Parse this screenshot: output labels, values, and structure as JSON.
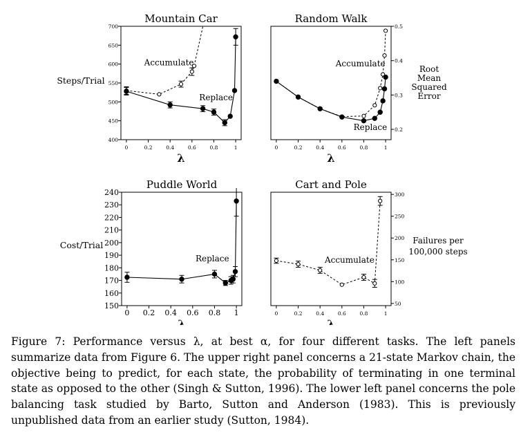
{
  "caption": "Figure 7: Performance versus λ, at best α, for four different tasks. The left panels summarize data from Figure 6. The upper right panel concerns a 21-state Markov chain, the objective being to predict, for each state, the probability of terminating in one terminal state as opposed to the other (Singh & Sutton, 1996). The lower left panel concerns the pole balancing task studied by Barto, Sutton and Anderson (1983). This is previously unpublished data from an earlier study (Sutton, 1984).",
  "chart_data": [
    {
      "id": "mountain-car",
      "type": "line",
      "title": "Mountain Car",
      "xlabel": "λ",
      "ylabel": "Steps/Trial",
      "xlim": [
        -0.05,
        1.05
      ],
      "ylim": [
        400,
        700
      ],
      "xticks": [
        "0",
        "0.2",
        "0.4",
        "0.6",
        "0.8",
        "1"
      ],
      "xtick_values": [
        0,
        0.2,
        0.4,
        0.6,
        0.8,
        1
      ],
      "yticks": [
        "400",
        "450",
        "500",
        "550",
        "600",
        "650",
        "700"
      ],
      "ytick_values": [
        400,
        450,
        500,
        550,
        600,
        650,
        700
      ],
      "series": [
        {
          "name": "Accumulate",
          "style": "dashed-open",
          "points": [
            [
              0,
              530,
              10
            ],
            [
              0.3,
              520,
              0
            ],
            [
              0.5,
              547,
              8
            ],
            [
              0.6,
              580,
              10
            ],
            [
              0.62,
              595,
              0
            ],
            [
              0.7,
              700,
              0
            ]
          ]
        },
        {
          "name": "Replace",
          "style": "solid-filled",
          "points": [
            [
              0,
              528,
              10
            ],
            [
              0.4,
              492,
              8
            ],
            [
              0.7,
              482,
              8
            ],
            [
              0.8,
              473,
              8
            ],
            [
              0.9,
              445,
              8
            ],
            [
              0.95,
              462,
              0
            ],
            [
              0.99,
              530,
              0
            ],
            [
              1,
              672,
              22
            ]
          ]
        }
      ],
      "annotations": [
        {
          "text": "Accumulate",
          "x": 0.39,
          "y": 597
        },
        {
          "text": "Replace",
          "x": 0.82,
          "y": 504
        }
      ]
    },
    {
      "id": "random-walk",
      "type": "line",
      "title": "Random Walk",
      "xlabel": "λ",
      "ylabel": "Root Mean Squared Error",
      "ylabel_lines": [
        "Root",
        "Mean",
        "Squared",
        "Error"
      ],
      "y_axis_side": "right",
      "xlim": [
        -0.05,
        1.05
      ],
      "ylim": [
        0.17,
        0.5
      ],
      "xticks": [
        "0",
        "0.2",
        "0.4",
        "0.6",
        "0.8",
        "1"
      ],
      "xtick_values": [
        0,
        0.2,
        0.4,
        0.6,
        0.8,
        1
      ],
      "yticks": [
        "0.2",
        "0.3",
        "0.4",
        "0.5"
      ],
      "ytick_values": [
        0.2,
        0.3,
        0.4,
        0.5
      ],
      "series": [
        {
          "name": "Accumulate",
          "style": "dashed-open",
          "points": [
            [
              0,
              0.34,
              0
            ],
            [
              0.2,
              0.294,
              0
            ],
            [
              0.4,
              0.26,
              0
            ],
            [
              0.6,
              0.237,
              0
            ],
            [
              0.8,
              0.239,
              0
            ],
            [
              0.9,
              0.27,
              0
            ],
            [
              0.95,
              0.32,
              0
            ],
            [
              0.975,
              0.36,
              0
            ],
            [
              0.99,
              0.415,
              0
            ],
            [
              1,
              0.487,
              0
            ]
          ]
        },
        {
          "name": "Replace",
          "style": "solid-filled",
          "points": [
            [
              0,
              0.34,
              0
            ],
            [
              0.2,
              0.294,
              0
            ],
            [
              0.4,
              0.26,
              0
            ],
            [
              0.6,
              0.236,
              0
            ],
            [
              0.8,
              0.225,
              0
            ],
            [
              0.9,
              0.232,
              0
            ],
            [
              0.95,
              0.25,
              0
            ],
            [
              0.975,
              0.283,
              0
            ],
            [
              0.99,
              0.318,
              0
            ],
            [
              1,
              0.352,
              0
            ]
          ]
        }
      ],
      "annotations": [
        {
          "text": "Accumulate",
          "x": 0.77,
          "y": 0.383
        },
        {
          "text": "Replace",
          "x": 0.86,
          "y": 0.198
        }
      ]
    },
    {
      "id": "puddle-world",
      "type": "line",
      "title": "Puddle World",
      "xlabel": "λ",
      "ylabel": "Cost/Trial",
      "xlim": [
        -0.05,
        1.05
      ],
      "ylim": [
        150,
        240
      ],
      "xticks": [
        "0",
        "0.2",
        "0.4",
        "0.6",
        "0.8",
        "1"
      ],
      "xtick_values": [
        0,
        0.2,
        0.4,
        0.6,
        0.8,
        1
      ],
      "yticks": [
        "150",
        "160",
        "170",
        "180",
        "190",
        "200",
        "210",
        "220",
        "230",
        "240"
      ],
      "ytick_values": [
        150,
        160,
        170,
        180,
        190,
        200,
        210,
        220,
        230,
        240
      ],
      "series": [
        {
          "name": "Replace",
          "style": "solid-filled",
          "points": [
            [
              0,
              172.5,
              4
            ],
            [
              0.5,
              171,
              3
            ],
            [
              0.8,
              175,
              3
            ],
            [
              0.9,
              168,
              2
            ],
            [
              0.95,
              170,
              3
            ],
            [
              0.97,
              171,
              3
            ],
            [
              0.99,
              177,
              4
            ],
            [
              1,
              233,
              12
            ]
          ]
        }
      ],
      "annotations": [
        {
          "text": "Replace",
          "x": 0.78,
          "y": 185
        }
      ]
    },
    {
      "id": "cart-and-pole",
      "type": "line",
      "title": "Cart and Pole",
      "xlabel": "λ",
      "ylabel": "Failures per 100,000 steps",
      "ylabel_lines": [
        "Failures per",
        "100,000 steps"
      ],
      "y_axis_side": "right",
      "xlim": [
        -0.05,
        1.05
      ],
      "ylim": [
        45,
        305
      ],
      "xticks": [
        "0",
        "0.2",
        "0.4",
        "0.6",
        "0.8",
        "1"
      ],
      "xtick_values": [
        0,
        0.2,
        0.4,
        0.6,
        0.8,
        1
      ],
      "yticks": [
        "50",
        "100",
        "150",
        "200",
        "250",
        "300"
      ],
      "ytick_values": [
        50,
        100,
        150,
        200,
        250,
        300
      ],
      "series": [
        {
          "name": "Accumulate",
          "style": "dashed-open",
          "points": [
            [
              0,
              148,
              6
            ],
            [
              0.2,
              140,
              7
            ],
            [
              0.4,
              126,
              7
            ],
            [
              0.6,
              93,
              0
            ],
            [
              0.8,
              110,
              7
            ],
            [
              0.9,
              96,
              9
            ],
            [
              0.95,
              285,
              10
            ]
          ]
        }
      ],
      "annotations": [
        {
          "text": "Accumulate",
          "x": 0.67,
          "y": 143
        }
      ]
    }
  ]
}
